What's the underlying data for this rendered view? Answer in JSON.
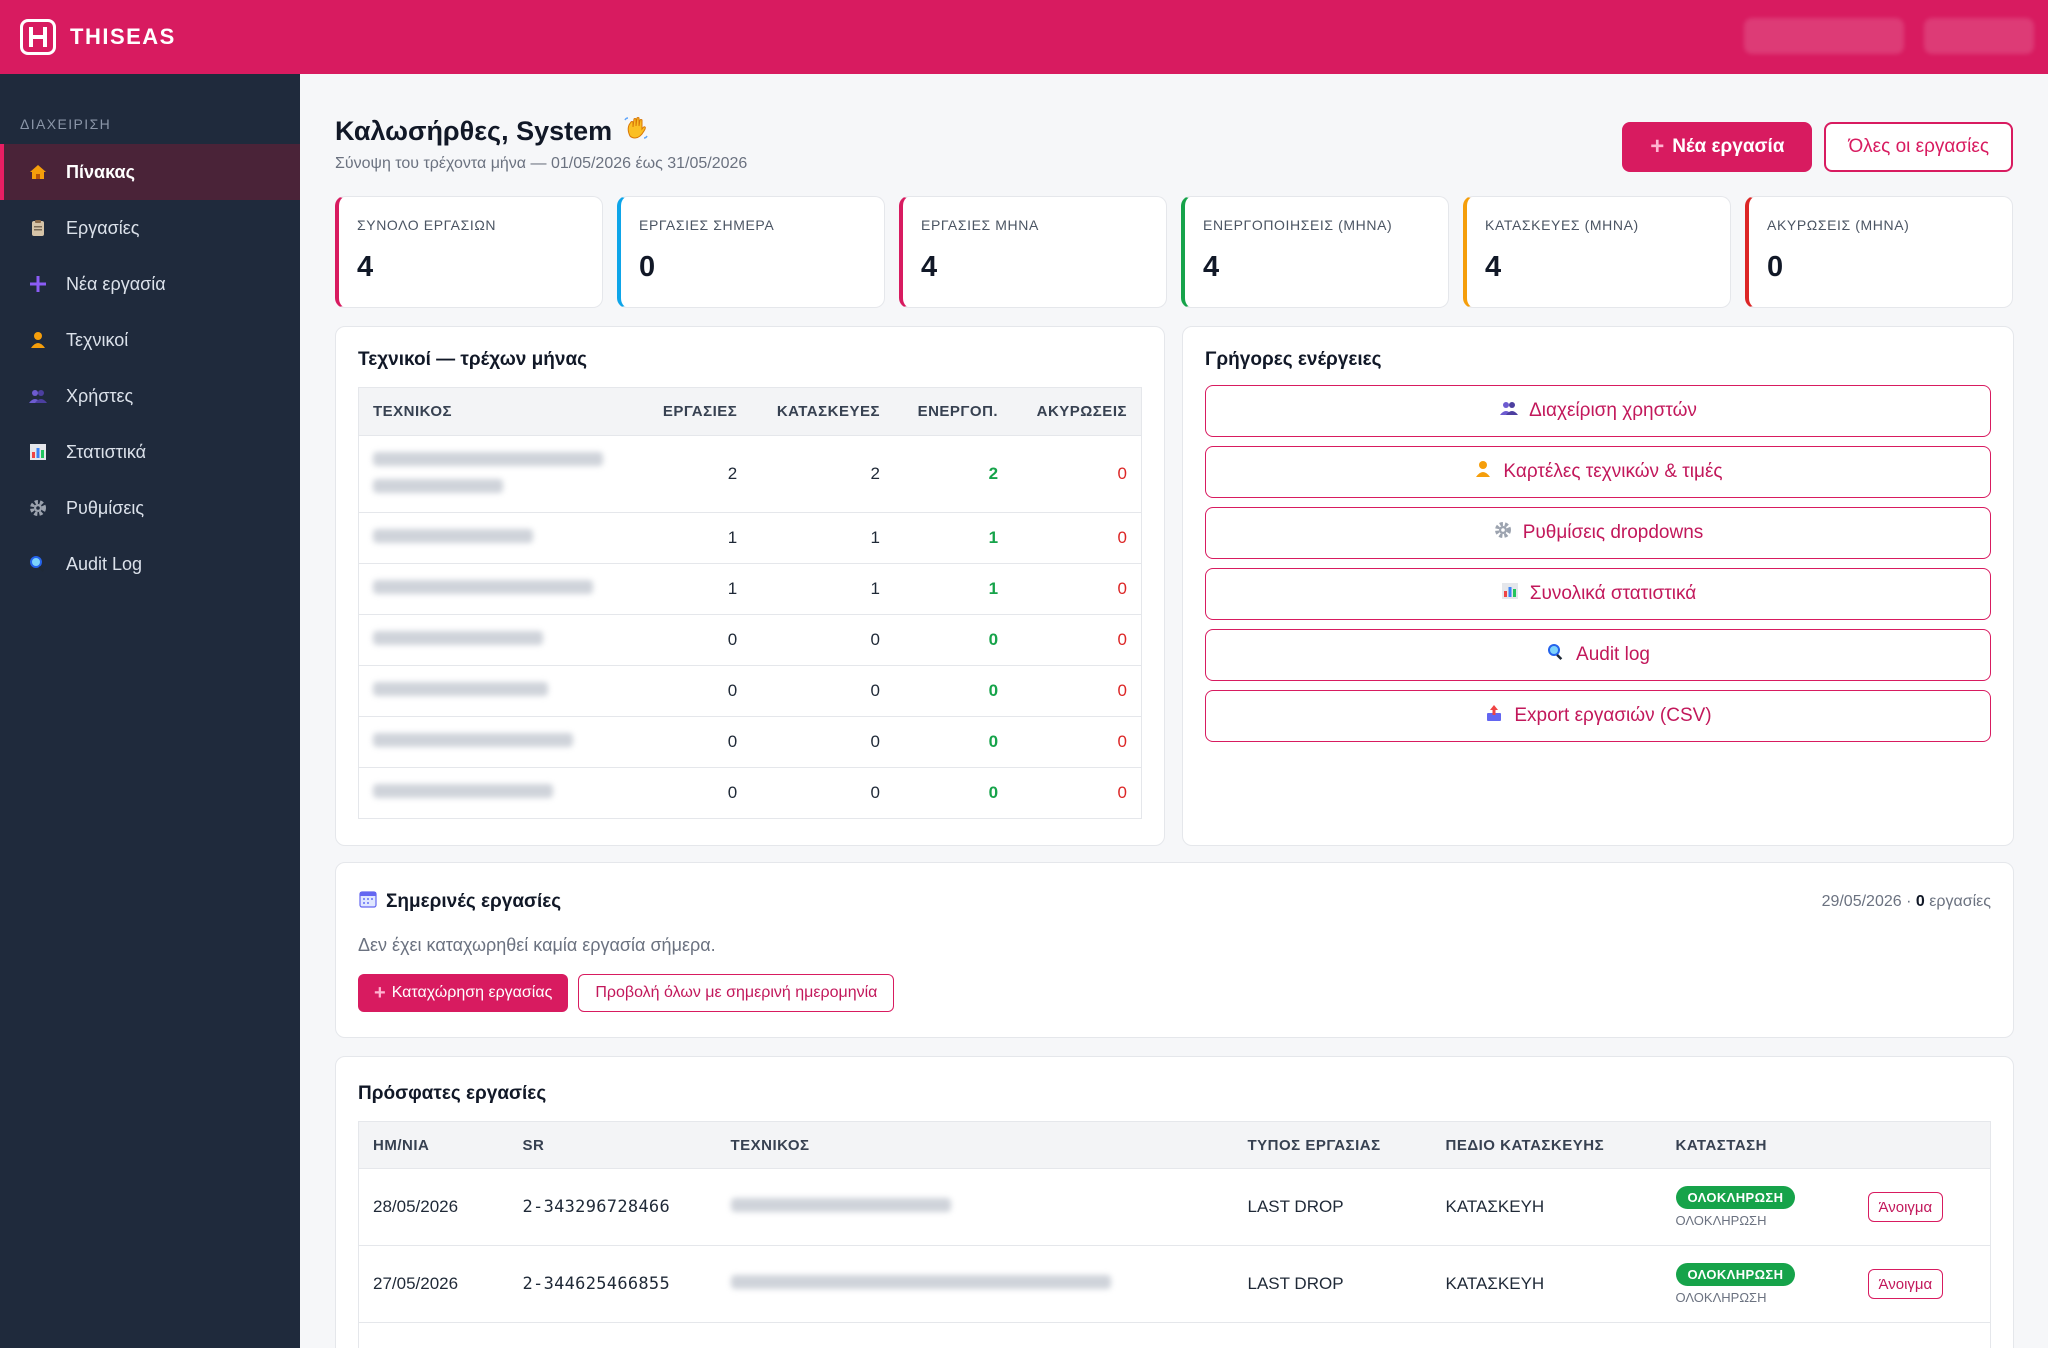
{
  "app": {
    "name": "THISEAS"
  },
  "sidebar": {
    "section": "ΔΙΑΧΕΙΡΙΣΗ",
    "items": [
      {
        "label": "Πίνακας",
        "icon": "home-icon"
      },
      {
        "label": "Εργασίες",
        "icon": "clipboard-icon"
      },
      {
        "label": "Νέα εργασία",
        "icon": "plus-icon"
      },
      {
        "label": "Τεχνικοί",
        "icon": "technician-icon"
      },
      {
        "label": "Χρήστες",
        "icon": "users-icon"
      },
      {
        "label": "Στατιστικά",
        "icon": "chart-icon"
      },
      {
        "label": "Ρυθμίσεις",
        "icon": "gear-icon"
      },
      {
        "label": "Audit Log",
        "icon": "magnifier-icon"
      }
    ]
  },
  "header": {
    "greeting": "Καλωσήρθες, System",
    "subtitle": "Σύνοψη του τρέχοντα μήνα — 01/05/2026 έως 31/05/2026",
    "new_task": "Νέα εργασία",
    "all_tasks": "Όλες οι εργασίες"
  },
  "stats": [
    {
      "label": "ΣΥΝΟΛΟ ΕΡΓΑΣΙΩΝ",
      "value": "4",
      "color": "#d81b60"
    },
    {
      "label": "ΕΡΓΑΣΙΕΣ ΣΗΜΕΡΑ",
      "value": "0",
      "color": "#0ea5e9"
    },
    {
      "label": "ΕΡΓΑΣΙΕΣ ΜΗΝΑ",
      "value": "4",
      "color": "#d81b60"
    },
    {
      "label": "ΕΝΕΡΓΟΠΟΙΗΣΕΙΣ (ΜΗΝΑ)",
      "value": "4",
      "color": "#16a34a"
    },
    {
      "label": "ΚΑΤΑΣΚΕΥΕΣ (ΜΗΝΑ)",
      "value": "4",
      "color": "#f59e0b"
    },
    {
      "label": "ΑΚΥΡΩΣΕΙΣ (ΜΗΝΑ)",
      "value": "0",
      "color": "#dc2626"
    }
  ],
  "technicians": {
    "title": "Τεχνικοί — τρέχων μήνας",
    "columns": [
      "ΤΕΧΝΙΚΟΣ",
      "ΕΡΓΑΣΙΕΣ",
      "ΚΑΤΑΣΚΕΥΕΣ",
      "ΕΝΕΡΓΟΠ.",
      "ΑΚΥΡΩΣΕΙΣ"
    ],
    "rows": [
      {
        "tasks": "2",
        "builds": "2",
        "activations": "2",
        "cancellations": "0"
      },
      {
        "tasks": "1",
        "builds": "1",
        "activations": "1",
        "cancellations": "0"
      },
      {
        "tasks": "1",
        "builds": "1",
        "activations": "1",
        "cancellations": "0"
      },
      {
        "tasks": "0",
        "builds": "0",
        "activations": "0",
        "cancellations": "0"
      },
      {
        "tasks": "0",
        "builds": "0",
        "activations": "0",
        "cancellations": "0"
      },
      {
        "tasks": "0",
        "builds": "0",
        "activations": "0",
        "cancellations": "0"
      },
      {
        "tasks": "0",
        "builds": "0",
        "activations": "0",
        "cancellations": "0"
      }
    ]
  },
  "quick_actions": {
    "title": "Γρήγορες ενέργειες",
    "items": [
      {
        "label": "Διαχείριση χρηστών",
        "icon": "users-icon"
      },
      {
        "label": "Καρτέλες τεχνικών & τιμές",
        "icon": "technician-icon"
      },
      {
        "label": "Ρυθμίσεις dropdowns",
        "icon": "gear-icon"
      },
      {
        "label": "Συνολικά στατιστικά",
        "icon": "chart-icon"
      },
      {
        "label": "Audit log",
        "icon": "magnifier-icon"
      },
      {
        "label": "Export εργασιών (CSV)",
        "icon": "export-icon"
      }
    ]
  },
  "today": {
    "title": "Σημερινές εργασίες",
    "date": "29/05/2026 ·",
    "count": "0",
    "count_label": "εργασίες",
    "empty": "Δεν έχει καταχωρηθεί καμία εργασία σήμερα.",
    "register_btn": "Καταχώρηση εργασίας",
    "view_all_btn": "Προβολή όλων με σημερινή ημερομηνία"
  },
  "recent": {
    "title": "Πρόσφατες εργασίες",
    "columns": [
      "ΗΜ/ΝΙΑ",
      "SR",
      "ΤΕΧΝΙΚΟΣ",
      "ΤΥΠΟΣ ΕΡΓΑΣΙΑΣ",
      "ΠΕΔΙΟ ΚΑΤΑΣΚΕΥΗΣ",
      "ΚΑΤΑΣΤΑΣΗ"
    ],
    "rows": [
      {
        "date": "28/05/2026",
        "sr": "2-343296728466",
        "type": "LAST DROP",
        "field": "ΚΑΤΑΣΚΕΥΗ",
        "status": "ΟΛΟΚΛΗΡΩΣΗ",
        "status_sub": "ΟΛΟΚΛΗΡΩΣΗ",
        "action": "Άνοιγμα"
      },
      {
        "date": "27/05/2026",
        "sr": "2-344625466855",
        "type": "LAST DROP",
        "field": "ΚΑΤΑΣΚΕΥΗ",
        "status": "ΟΛΟΚΛΗΡΩΣΗ",
        "status_sub": "ΟΛΟΚΛΗΡΩΣΗ",
        "action": "Άνοιγμα"
      }
    ]
  }
}
